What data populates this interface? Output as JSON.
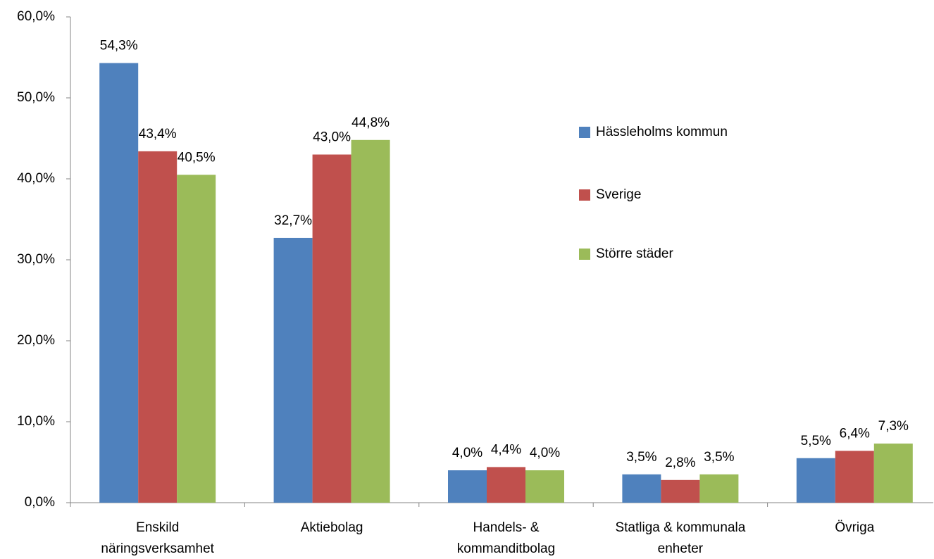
{
  "chart_data": {
    "type": "bar",
    "categories": [
      "Enskild\nnäringsverksamhet",
      "Aktiebolag",
      "Handels- &\nkommanditbolag",
      "Statliga & kommunala\nenheter",
      "Övriga"
    ],
    "series": [
      {
        "name": "Hässleholms kommun",
        "color": "#4f81bd",
        "values": [
          54.3,
          32.7,
          4.0,
          3.5,
          5.5
        ],
        "value_labels": [
          "54,3%",
          "32,7%",
          "4,0%",
          "3,5%",
          "5,5%"
        ]
      },
      {
        "name": "Sverige",
        "color": "#c0504d",
        "values": [
          43.4,
          43.0,
          4.4,
          2.8,
          6.4
        ],
        "value_labels": [
          "43,4%",
          "43,0%",
          "4,4%",
          "2,8%",
          "6,4%"
        ]
      },
      {
        "name": "Större städer",
        "color": "#9bbb59",
        "values": [
          40.5,
          44.8,
          4.0,
          3.5,
          7.3
        ],
        "value_labels": [
          "40,5%",
          "44,8%",
          "4,0%",
          "3,5%",
          "7,3%"
        ]
      }
    ],
    "ylim": [
      0,
      60
    ],
    "yticks": [
      {
        "value": 0,
        "label": "0,0%"
      },
      {
        "value": 10,
        "label": "10,0%"
      },
      {
        "value": 20,
        "label": "20,0%"
      },
      {
        "value": 30,
        "label": "30,0%"
      },
      {
        "value": 40,
        "label": "40,0%"
      },
      {
        "value": 50,
        "label": "50,0%"
      },
      {
        "value": 60,
        "label": "60,0%"
      }
    ],
    "grid": false,
    "legend": "right"
  }
}
